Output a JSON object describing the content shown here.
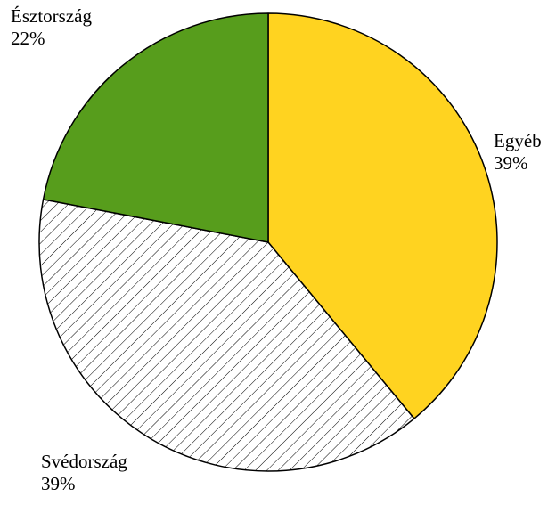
{
  "chart_data": {
    "type": "pie",
    "categories": [
      "Egyéb",
      "Svédország",
      "Észtország"
    ],
    "values": [
      39,
      39,
      22
    ],
    "value_labels": [
      "39%",
      "39%",
      "22%"
    ],
    "colors": [
      "#ffd320",
      "#ffffff",
      "#579d1c"
    ],
    "hatched": [
      false,
      true,
      false
    ]
  }
}
